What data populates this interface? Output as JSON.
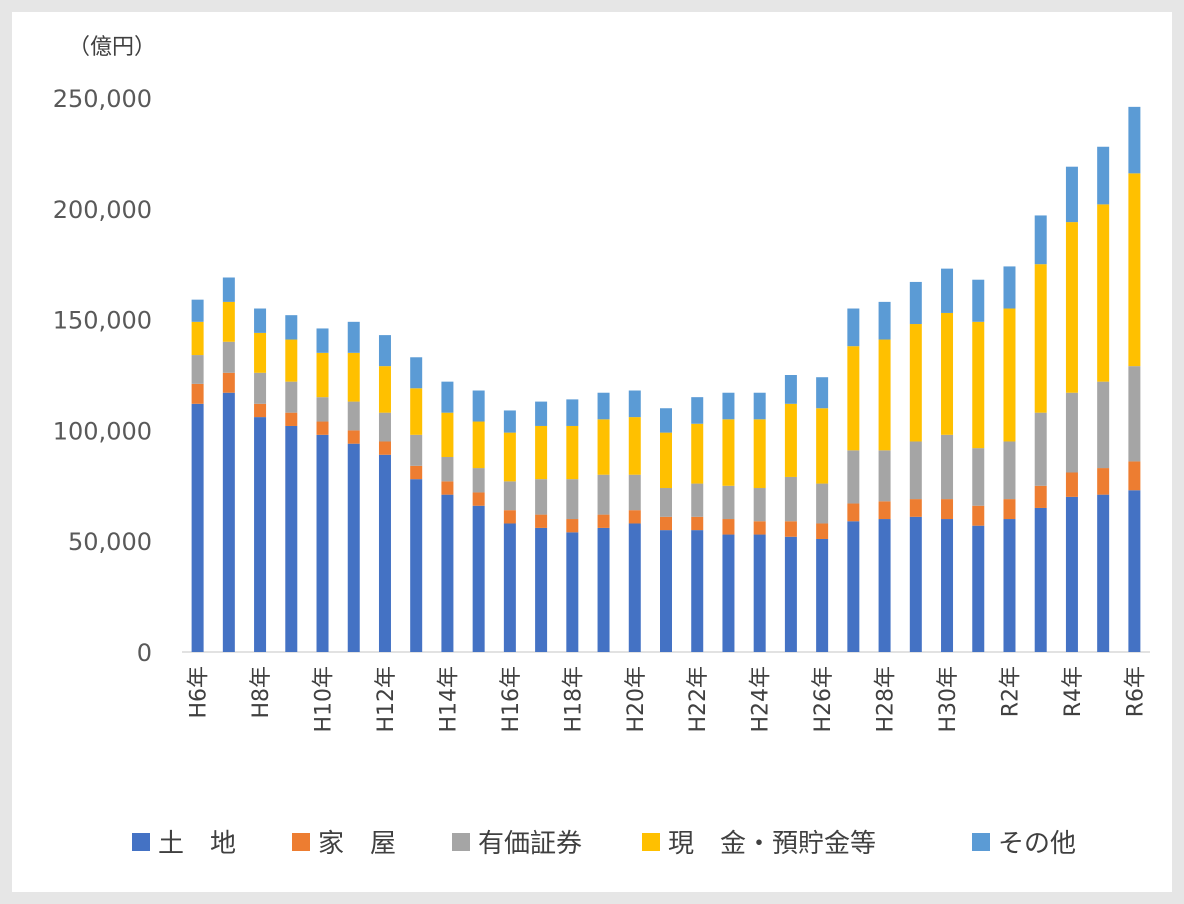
{
  "chart_data": {
    "type": "bar",
    "stacked": true,
    "unit_label": "（億円）",
    "ylim": [
      0,
      250000
    ],
    "yticks": [
      "0",
      "50,000",
      "100,000",
      "150,000",
      "200,000",
      "250,000"
    ],
    "ytick_values": [
      0,
      50000,
      100000,
      150000,
      200000,
      250000
    ],
    "categories": [
      "H6年",
      "H7年",
      "H8年",
      "H9年",
      "H10年",
      "H11年",
      "H12年",
      "H13年",
      "H14年",
      "H15年",
      "H16年",
      "H17年",
      "H18年",
      "H19年",
      "H20年",
      "H21年",
      "H22年",
      "H23年",
      "H24年",
      "H25年",
      "H26年",
      "H27年",
      "H28年",
      "H29年",
      "H30年",
      "R1年",
      "R2年",
      "R3年",
      "R4年",
      "R5年",
      "R6年"
    ],
    "tick_labels": [
      "H6年",
      "",
      "H8年",
      "",
      "H10年",
      "",
      "H12年",
      "",
      "H14年",
      "",
      "H16年",
      "",
      "H18年",
      "",
      "H20年",
      "",
      "H22年",
      "",
      "H24年",
      "",
      "H26年",
      "",
      "H28年",
      "",
      "H30年",
      "",
      "R2年",
      "",
      "R4年",
      "",
      "R6年"
    ],
    "series": [
      {
        "name": "土　地",
        "color": "#4472c4",
        "values": [
          112000,
          117000,
          106000,
          102000,
          98000,
          94000,
          89000,
          78000,
          71000,
          66000,
          58000,
          56000,
          54000,
          56000,
          58000,
          55000,
          55000,
          53000,
          53000,
          52000,
          51000,
          59000,
          60000,
          61000,
          60000,
          57000,
          60000,
          65000,
          70000,
          71000,
          73000
        ]
      },
      {
        "name": "家　屋",
        "color": "#ed7d31",
        "values": [
          9000,
          9000,
          6000,
          6000,
          6000,
          6000,
          6000,
          6000,
          6000,
          6000,
          6000,
          6000,
          6000,
          6000,
          6000,
          6000,
          6000,
          7000,
          6000,
          7000,
          7000,
          8000,
          8000,
          8000,
          9000,
          9000,
          9000,
          10000,
          11000,
          12000,
          13000
        ]
      },
      {
        "name": "有価証券",
        "color": "#a5a5a5",
        "values": [
          13000,
          14000,
          14000,
          14000,
          11000,
          13000,
          13000,
          14000,
          11000,
          11000,
          13000,
          16000,
          18000,
          18000,
          16000,
          13000,
          15000,
          15000,
          15000,
          20000,
          18000,
          24000,
          23000,
          26000,
          29000,
          26000,
          26000,
          33000,
          36000,
          39000,
          43000
        ]
      },
      {
        "name": "現　金・預貯金等",
        "color": "#ffc000",
        "values": [
          15000,
          18000,
          18000,
          19000,
          20000,
          22000,
          21000,
          21000,
          20000,
          21000,
          22000,
          24000,
          24000,
          25000,
          26000,
          25000,
          27000,
          30000,
          31000,
          33000,
          34000,
          47000,
          50000,
          53000,
          55000,
          57000,
          60000,
          67000,
          77000,
          80000,
          87000
        ]
      },
      {
        "name": "その他",
        "color": "#5b9bd5",
        "values": [
          10000,
          11000,
          11000,
          11000,
          11000,
          14000,
          14000,
          14000,
          14000,
          14000,
          10000,
          11000,
          12000,
          12000,
          12000,
          11000,
          12000,
          12000,
          12000,
          13000,
          14000,
          17000,
          17000,
          19000,
          20000,
          19000,
          19000,
          22000,
          25000,
          26000,
          30000
        ]
      }
    ]
  }
}
